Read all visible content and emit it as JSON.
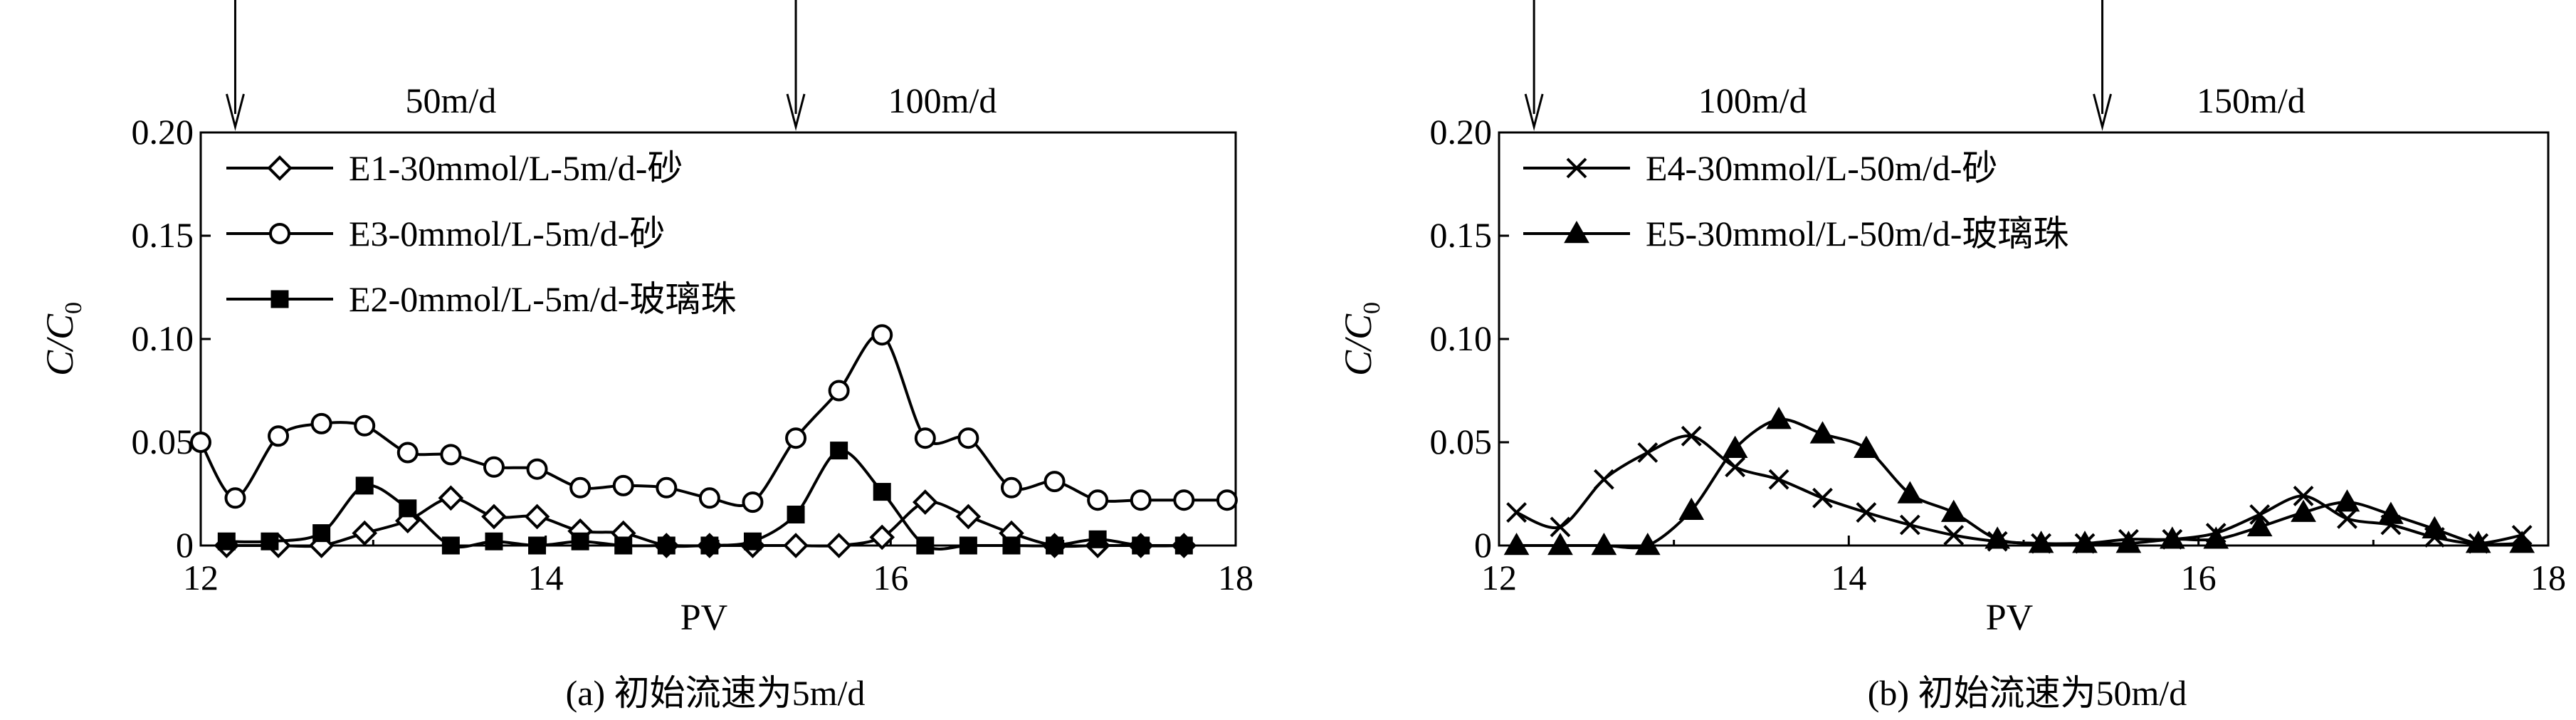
{
  "chart_data": [
    {
      "type": "line",
      "caption": "(a) 初始流速为5m/d",
      "xlabel": "PV",
      "ylabel_main": "C/C",
      "ylabel_sub": "0",
      "xlim": [
        12,
        18
      ],
      "ylim": [
        0,
        0.2
      ],
      "xticks": [
        12,
        14,
        16,
        18
      ],
      "xtick_labels": [
        "12",
        "14",
        "16",
        "18"
      ],
      "yticks": [
        0,
        0.05,
        0.1,
        0.15,
        0.2
      ],
      "ytick_labels": [
        "0",
        "0.05",
        "0.10",
        "0.15",
        "0.20"
      ],
      "grid": false,
      "legend_position": "top-left",
      "annotations": [
        {
          "text": "50m/d",
          "x": 13.45
        },
        {
          "text": "100m/d",
          "x": 16.3
        }
      ],
      "arrows_x": [
        12.2,
        15.45
      ],
      "series": [
        {
          "name": "E1-30mmol/L-5m/d-砂",
          "marker": "diamond",
          "x": [
            12.15,
            12.45,
            12.7,
            12.95,
            13.2,
            13.45,
            13.7,
            13.95,
            14.2,
            14.45,
            14.7,
            14.95,
            15.2,
            15.45,
            15.7,
            15.95,
            16.2,
            16.45,
            16.7,
            16.95,
            17.2,
            17.45,
            17.7
          ],
          "y": [
            0.0,
            0.0,
            0.0,
            0.006,
            0.012,
            0.023,
            0.014,
            0.014,
            0.007,
            0.006,
            0.0,
            0.0,
            0.0,
            0.0,
            0.0,
            0.004,
            0.021,
            0.014,
            0.006,
            0.0,
            0.0,
            0.0,
            0.0
          ]
        },
        {
          "name": "E3-0mmol/L-5m/d-砂",
          "marker": "circle",
          "x": [
            12.0,
            12.2,
            12.45,
            12.7,
            12.95,
            13.2,
            13.45,
            13.7,
            13.95,
            14.2,
            14.45,
            14.7,
            14.95,
            15.2,
            15.45,
            15.7,
            15.95,
            16.2,
            16.45,
            16.7,
            16.95,
            17.2,
            17.45,
            17.7,
            17.95
          ],
          "y": [
            0.05,
            0.023,
            0.053,
            0.059,
            0.058,
            0.045,
            0.044,
            0.038,
            0.037,
            0.028,
            0.029,
            0.028,
            0.023,
            0.021,
            0.052,
            0.075,
            0.102,
            0.052,
            0.052,
            0.028,
            0.031,
            0.022,
            0.022,
            0.022,
            0.022
          ]
        },
        {
          "name": "E2-0mmol/L-5m/d-玻璃珠",
          "marker": "square",
          "x": [
            12.15,
            12.4,
            12.7,
            12.95,
            13.2,
            13.45,
            13.7,
            13.95,
            14.2,
            14.45,
            14.7,
            14.95,
            15.2,
            15.45,
            15.7,
            15.95,
            16.2,
            16.45,
            16.7,
            16.95,
            17.2,
            17.45,
            17.7
          ],
          "y": [
            0.002,
            0.002,
            0.006,
            0.029,
            0.018,
            0.0,
            0.002,
            0.0,
            0.002,
            0.0,
            0.0,
            0.0,
            0.002,
            0.015,
            0.046,
            0.026,
            0.0,
            0.0,
            0.0,
            0.0,
            0.003,
            0.0,
            0.0
          ]
        }
      ]
    },
    {
      "type": "line",
      "caption": "(b) 初始流速为50m/d",
      "xlabel": "PV",
      "ylabel_main": "C/C",
      "ylabel_sub": "0",
      "xlim": [
        12,
        18
      ],
      "ylim": [
        0,
        0.2
      ],
      "xticks": [
        12,
        14,
        16,
        18
      ],
      "xtick_labels": [
        "12",
        "14",
        "16",
        "18"
      ],
      "yticks": [
        0,
        0.05,
        0.1,
        0.15,
        0.2
      ],
      "ytick_labels": [
        "0",
        "0.05",
        "0.10",
        "0.15",
        "0.20"
      ],
      "grid": false,
      "legend_position": "top-left",
      "annotations": [
        {
          "text": "100m/d",
          "x": 13.45
        },
        {
          "text": "150m/d",
          "x": 16.3
        }
      ],
      "arrows_x": [
        12.2,
        15.45
      ],
      "series": [
        {
          "name": "E4-30mmol/L-50m/d-砂",
          "marker": "cross",
          "x": [
            12.1,
            12.35,
            12.6,
            12.85,
            13.1,
            13.35,
            13.6,
            13.85,
            14.1,
            14.35,
            14.6,
            14.85,
            15.1,
            15.35,
            15.6,
            15.85,
            16.1,
            16.35,
            16.6,
            16.85,
            17.1,
            17.35,
            17.6,
            17.85
          ],
          "y": [
            0.016,
            0.009,
            0.032,
            0.045,
            0.053,
            0.038,
            0.032,
            0.023,
            0.016,
            0.01,
            0.005,
            0.002,
            0.001,
            0.001,
            0.003,
            0.003,
            0.006,
            0.015,
            0.024,
            0.013,
            0.01,
            0.004,
            0.001,
            0.005
          ]
        },
        {
          "name": "E5-30mmol/L-50m/d-玻璃珠",
          "marker": "triangle",
          "x": [
            12.1,
            12.35,
            12.6,
            12.85,
            13.1,
            13.35,
            13.6,
            13.85,
            14.1,
            14.35,
            14.6,
            14.85,
            15.1,
            15.35,
            15.6,
            15.85,
            16.1,
            16.35,
            16.6,
            16.85,
            17.1,
            17.35,
            17.6,
            17.85
          ],
          "y": [
            0.0,
            0.0,
            0.0,
            0.0,
            0.017,
            0.047,
            0.061,
            0.054,
            0.047,
            0.025,
            0.016,
            0.003,
            0.001,
            0.001,
            0.001,
            0.003,
            0.003,
            0.009,
            0.016,
            0.021,
            0.015,
            0.008,
            0.001,
            0.001
          ]
        }
      ]
    }
  ]
}
